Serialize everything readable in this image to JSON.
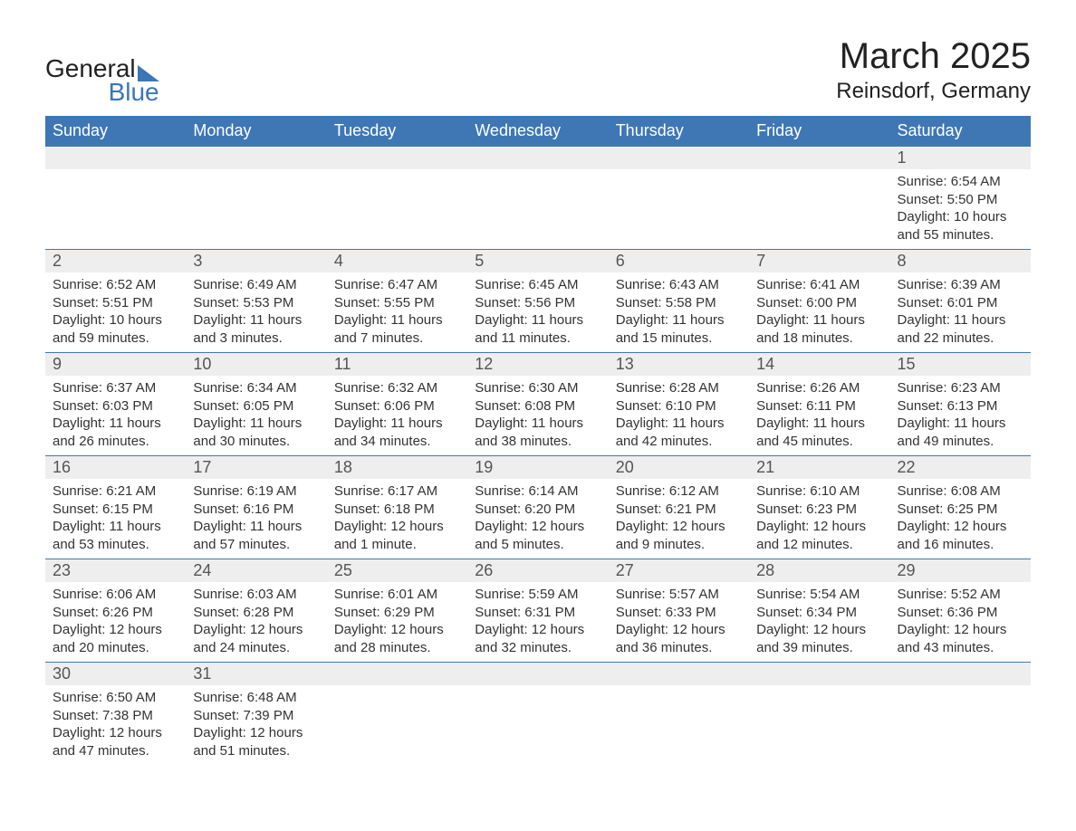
{
  "logo": {
    "text_general": "General",
    "text_blue": "Blue"
  },
  "title": "March 2025",
  "location": "Reinsdorf, Germany",
  "colors": {
    "header_bg": "#3f77b5",
    "header_text": "#ffffff",
    "daynum_bg": "#eeeeee",
    "row_border": "#3f77b5",
    "body_text": "#333333"
  },
  "fonts": {
    "title_size_pt": 30,
    "location_size_pt": 18,
    "header_size_pt": 14,
    "cell_size_pt": 11
  },
  "weekdays": [
    "Sunday",
    "Monday",
    "Tuesday",
    "Wednesday",
    "Thursday",
    "Friday",
    "Saturday"
  ],
  "weeks": [
    [
      {
        "day": null
      },
      {
        "day": null
      },
      {
        "day": null
      },
      {
        "day": null
      },
      {
        "day": null
      },
      {
        "day": null
      },
      {
        "day": 1,
        "sunrise": "Sunrise: 6:54 AM",
        "sunset": "Sunset: 5:50 PM",
        "daylight": "Daylight: 10 hours and 55 minutes."
      }
    ],
    [
      {
        "day": 2,
        "sunrise": "Sunrise: 6:52 AM",
        "sunset": "Sunset: 5:51 PM",
        "daylight": "Daylight: 10 hours and 59 minutes."
      },
      {
        "day": 3,
        "sunrise": "Sunrise: 6:49 AM",
        "sunset": "Sunset: 5:53 PM",
        "daylight": "Daylight: 11 hours and 3 minutes."
      },
      {
        "day": 4,
        "sunrise": "Sunrise: 6:47 AM",
        "sunset": "Sunset: 5:55 PM",
        "daylight": "Daylight: 11 hours and 7 minutes."
      },
      {
        "day": 5,
        "sunrise": "Sunrise: 6:45 AM",
        "sunset": "Sunset: 5:56 PM",
        "daylight": "Daylight: 11 hours and 11 minutes."
      },
      {
        "day": 6,
        "sunrise": "Sunrise: 6:43 AM",
        "sunset": "Sunset: 5:58 PM",
        "daylight": "Daylight: 11 hours and 15 minutes."
      },
      {
        "day": 7,
        "sunrise": "Sunrise: 6:41 AM",
        "sunset": "Sunset: 6:00 PM",
        "daylight": "Daylight: 11 hours and 18 minutes."
      },
      {
        "day": 8,
        "sunrise": "Sunrise: 6:39 AM",
        "sunset": "Sunset: 6:01 PM",
        "daylight": "Daylight: 11 hours and 22 minutes."
      }
    ],
    [
      {
        "day": 9,
        "sunrise": "Sunrise: 6:37 AM",
        "sunset": "Sunset: 6:03 PM",
        "daylight": "Daylight: 11 hours and 26 minutes."
      },
      {
        "day": 10,
        "sunrise": "Sunrise: 6:34 AM",
        "sunset": "Sunset: 6:05 PM",
        "daylight": "Daylight: 11 hours and 30 minutes."
      },
      {
        "day": 11,
        "sunrise": "Sunrise: 6:32 AM",
        "sunset": "Sunset: 6:06 PM",
        "daylight": "Daylight: 11 hours and 34 minutes."
      },
      {
        "day": 12,
        "sunrise": "Sunrise: 6:30 AM",
        "sunset": "Sunset: 6:08 PM",
        "daylight": "Daylight: 11 hours and 38 minutes."
      },
      {
        "day": 13,
        "sunrise": "Sunrise: 6:28 AM",
        "sunset": "Sunset: 6:10 PM",
        "daylight": "Daylight: 11 hours and 42 minutes."
      },
      {
        "day": 14,
        "sunrise": "Sunrise: 6:26 AM",
        "sunset": "Sunset: 6:11 PM",
        "daylight": "Daylight: 11 hours and 45 minutes."
      },
      {
        "day": 15,
        "sunrise": "Sunrise: 6:23 AM",
        "sunset": "Sunset: 6:13 PM",
        "daylight": "Daylight: 11 hours and 49 minutes."
      }
    ],
    [
      {
        "day": 16,
        "sunrise": "Sunrise: 6:21 AM",
        "sunset": "Sunset: 6:15 PM",
        "daylight": "Daylight: 11 hours and 53 minutes."
      },
      {
        "day": 17,
        "sunrise": "Sunrise: 6:19 AM",
        "sunset": "Sunset: 6:16 PM",
        "daylight": "Daylight: 11 hours and 57 minutes."
      },
      {
        "day": 18,
        "sunrise": "Sunrise: 6:17 AM",
        "sunset": "Sunset: 6:18 PM",
        "daylight": "Daylight: 12 hours and 1 minute."
      },
      {
        "day": 19,
        "sunrise": "Sunrise: 6:14 AM",
        "sunset": "Sunset: 6:20 PM",
        "daylight": "Daylight: 12 hours and 5 minutes."
      },
      {
        "day": 20,
        "sunrise": "Sunrise: 6:12 AM",
        "sunset": "Sunset: 6:21 PM",
        "daylight": "Daylight: 12 hours and 9 minutes."
      },
      {
        "day": 21,
        "sunrise": "Sunrise: 6:10 AM",
        "sunset": "Sunset: 6:23 PM",
        "daylight": "Daylight: 12 hours and 12 minutes."
      },
      {
        "day": 22,
        "sunrise": "Sunrise: 6:08 AM",
        "sunset": "Sunset: 6:25 PM",
        "daylight": "Daylight: 12 hours and 16 minutes."
      }
    ],
    [
      {
        "day": 23,
        "sunrise": "Sunrise: 6:06 AM",
        "sunset": "Sunset: 6:26 PM",
        "daylight": "Daylight: 12 hours and 20 minutes."
      },
      {
        "day": 24,
        "sunrise": "Sunrise: 6:03 AM",
        "sunset": "Sunset: 6:28 PM",
        "daylight": "Daylight: 12 hours and 24 minutes."
      },
      {
        "day": 25,
        "sunrise": "Sunrise: 6:01 AM",
        "sunset": "Sunset: 6:29 PM",
        "daylight": "Daylight: 12 hours and 28 minutes."
      },
      {
        "day": 26,
        "sunrise": "Sunrise: 5:59 AM",
        "sunset": "Sunset: 6:31 PM",
        "daylight": "Daylight: 12 hours and 32 minutes."
      },
      {
        "day": 27,
        "sunrise": "Sunrise: 5:57 AM",
        "sunset": "Sunset: 6:33 PM",
        "daylight": "Daylight: 12 hours and 36 minutes."
      },
      {
        "day": 28,
        "sunrise": "Sunrise: 5:54 AM",
        "sunset": "Sunset: 6:34 PM",
        "daylight": "Daylight: 12 hours and 39 minutes."
      },
      {
        "day": 29,
        "sunrise": "Sunrise: 5:52 AM",
        "sunset": "Sunset: 6:36 PM",
        "daylight": "Daylight: 12 hours and 43 minutes."
      }
    ],
    [
      {
        "day": 30,
        "sunrise": "Sunrise: 6:50 AM",
        "sunset": "Sunset: 7:38 PM",
        "daylight": "Daylight: 12 hours and 47 minutes."
      },
      {
        "day": 31,
        "sunrise": "Sunrise: 6:48 AM",
        "sunset": "Sunset: 7:39 PM",
        "daylight": "Daylight: 12 hours and 51 minutes."
      },
      {
        "day": null
      },
      {
        "day": null
      },
      {
        "day": null
      },
      {
        "day": null
      },
      {
        "day": null
      }
    ]
  ]
}
